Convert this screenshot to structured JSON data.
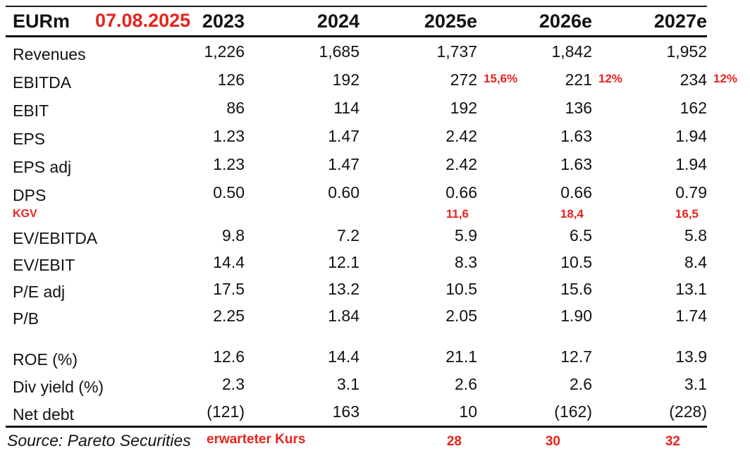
{
  "header": {
    "unit_label": "EURm",
    "date_annotation": "07.08.2025",
    "columns": [
      "2023",
      "2024",
      "2025e",
      "2026e",
      "2027e"
    ]
  },
  "table": {
    "rows": [
      {
        "label": "Revenues",
        "values": [
          "1,226",
          "1,685",
          "1,737",
          "1,842",
          "1,952"
        ]
      },
      {
        "label": "EBITDA",
        "values": [
          "126",
          "192",
          "272",
          "221",
          "234"
        ],
        "growth_annotations": [
          "15,6%",
          "12%",
          "12%"
        ]
      },
      {
        "label": "EBIT",
        "values": [
          "86",
          "114",
          "192",
          "136",
          "162"
        ]
      },
      {
        "label": "EPS",
        "values": [
          "1.23",
          "1.47",
          "2.42",
          "1.63",
          "1.94"
        ]
      },
      {
        "label": "EPS adj",
        "values": [
          "1.23",
          "1.47",
          "2.42",
          "1.63",
          "1.94"
        ]
      },
      {
        "label": "DPS",
        "values": [
          "0.50",
          "0.60",
          "0.66",
          "0.66",
          "0.79"
        ]
      },
      {
        "label": "EV/EBITDA",
        "values": [
          "9.8",
          "7.2",
          "5.9",
          "6.5",
          "5.8"
        ]
      },
      {
        "label": "EV/EBIT",
        "values": [
          "14.4",
          "12.1",
          "8.3",
          "10.5",
          "8.4"
        ]
      },
      {
        "label": "P/E adj",
        "values": [
          "17.5",
          "13.2",
          "10.5",
          "15.6",
          "13.1"
        ]
      },
      {
        "label": "P/B",
        "values": [
          "2.25",
          "1.84",
          "2.05",
          "1.90",
          "1.74"
        ]
      },
      {
        "label": "ROE (%)",
        "values": [
          "12.6",
          "14.4",
          "21.1",
          "12.7",
          "13.9"
        ]
      },
      {
        "label": "Div yield (%)",
        "values": [
          "2.3",
          "3.1",
          "2.6",
          "2.6",
          "3.1"
        ]
      },
      {
        "label": "Net debt",
        "values": [
          "(121)",
          "163",
          "10",
          "(162)",
          "(228)"
        ]
      }
    ],
    "kgv_annotation": {
      "label": "KGV",
      "values": [
        "11,6",
        "18,4",
        "16,5"
      ]
    }
  },
  "footer": {
    "source": "Source: Pareto Securities",
    "expected_price_label": "erwarteter Kurs",
    "expected_prices": [
      "28",
      "30",
      "32"
    ]
  },
  "colors": {
    "annotation_red": "#e8231d",
    "text_black": "#121212"
  }
}
